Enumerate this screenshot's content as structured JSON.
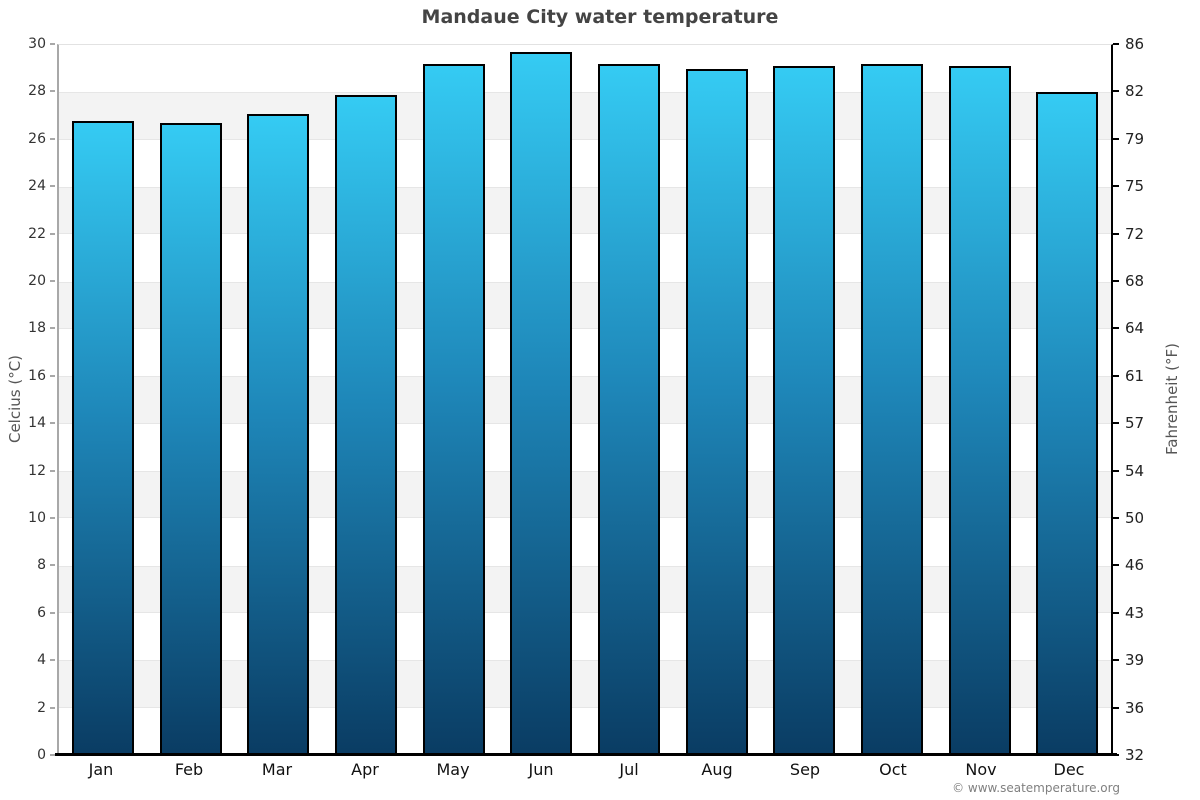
{
  "title": "Mandaue City water temperature",
  "y_axis_left": {
    "label": "Celcius (°C)",
    "ticks": [
      30,
      28,
      26,
      24,
      22,
      20,
      18,
      16,
      14,
      12,
      10,
      8,
      6,
      4,
      2,
      0
    ]
  },
  "y_axis_right": {
    "label": "Fahrenheit (°F)",
    "ticks": [
      86,
      82,
      79,
      75,
      72,
      68,
      64,
      61,
      57,
      54,
      50,
      46,
      43,
      39,
      36,
      32
    ]
  },
  "footer": {
    "copyright": "© www.seatemperature.org"
  },
  "colors": {
    "bar_top": "#35cbf3",
    "bar_mid": "#1e86b8",
    "bar_bottom": "#0a3c63",
    "bar_border": "#000000",
    "band_gray": "#f3f3f3",
    "title_text": "#444444"
  },
  "chart_data": {
    "type": "bar",
    "title": "Mandaue City water temperature",
    "categories": [
      "Jan",
      "Feb",
      "Mar",
      "Apr",
      "May",
      "Jun",
      "Jul",
      "Aug",
      "Sep",
      "Oct",
      "Nov",
      "Dec"
    ],
    "values": [
      26.8,
      26.7,
      27.1,
      27.9,
      29.2,
      29.7,
      29.2,
      29.0,
      29.1,
      29.2,
      29.1,
      28.0
    ],
    "xlabel": "",
    "ylabel": "Celcius (°C)",
    "ylabel_right": "Fahrenheit (°F)",
    "ylim": [
      0,
      30
    ],
    "y_tick_step": 2,
    "grid": "alternating horizontal bands every 2 degrees (gray/white)",
    "legend": "none"
  }
}
